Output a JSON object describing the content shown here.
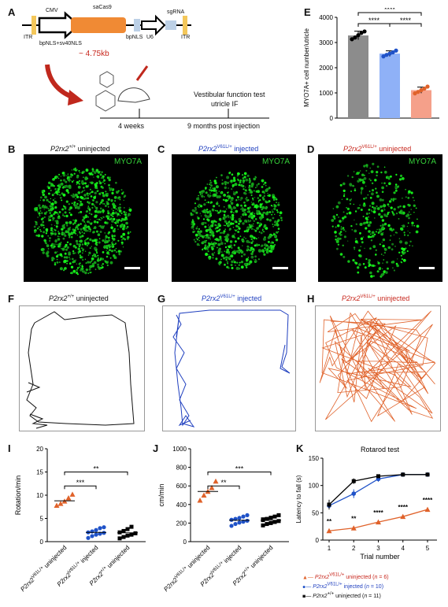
{
  "panels": {
    "A": "A",
    "B": "B",
    "C": "C",
    "D": "D",
    "E": "E",
    "F": "F",
    "G": "G",
    "H": "H",
    "I": "I",
    "J": "J",
    "K": "K"
  },
  "construct": {
    "itr_left": "ITR",
    "cmv": "CMV",
    "sacas9": "saCas9",
    "sgrna": "sgRNA",
    "u6": "U6",
    "itr_right": "ITR",
    "bpnls_sv40": "bpNLS+sv40NLS",
    "bpnls": "bpNLS",
    "size": "~ 4.75kb"
  },
  "timeline": {
    "test_line1": "Vestibular function test",
    "test_line2": "utricle IF",
    "t1": "4 weeks",
    "t2": "9 months post injection"
  },
  "micro_titles": {
    "B": {
      "gene": "P2rx2",
      "sup": "+/+",
      "rest": " uninjected",
      "color": "#000000"
    },
    "C": {
      "gene": "P2rx2",
      "sup": "V61L/+",
      "rest": " injected",
      "color": "#1f3fbf"
    },
    "D": {
      "gene": "P2rx2",
      "sup": "V61L/+",
      "rest": " uninjected",
      "color": "#c8281e"
    }
  },
  "micro_stain": "MYO7A",
  "track_titles": {
    "F": {
      "gene": "P2rx2",
      "sup": "+/+",
      "rest": " uninjected",
      "color": "#000000"
    },
    "G": {
      "gene": "P2rx2",
      "sup": "V61L/+",
      "rest": " injected",
      "color": "#1f3fbf"
    },
    "H": {
      "gene": "P2rx2",
      "sup": "V61L/+",
      "rest": " uninjected",
      "color": "#c8281e"
    }
  },
  "group_labels": {
    "g1": {
      "gene": "P2rx2",
      "sup": "V61L/+",
      "rest": " uninjected"
    },
    "g2": {
      "gene": "P2rx2",
      "sup": "V61L/+",
      "rest": " injected"
    },
    "g3": {
      "gene": "P2rx2",
      "sup": "+/+",
      "rest": " uninjected"
    }
  },
  "colors": {
    "wt": "#000000",
    "injected": "#1f52c8",
    "uninjected": "#e0622a",
    "green": "#36d23a"
  },
  "chart_data": [
    {
      "id": "E",
      "type": "bar",
      "ylabel": "MYO7A+ cell number/utricle",
      "ylabel_sup": "+",
      "ylim": [
        0,
        4000
      ],
      "yticks": [
        0,
        1000,
        2000,
        3000,
        4000
      ],
      "categories": [
        "P2rx2+/+ uninjected",
        "P2rx2V61L/+ injected",
        "P2rx2V61L/+ uninjected"
      ],
      "values": [
        3280,
        2560,
        1110
      ],
      "errors": [
        170,
        110,
        120
      ],
      "points": [
        [
          3130,
          3200,
          3290,
          3380,
          3440
        ],
        [
          2450,
          2510,
          2560,
          2610,
          2680
        ],
        [
          980,
          1040,
          1110,
          1170,
          1250
        ]
      ],
      "bar_colors": [
        "#8c8c8c",
        "#8fb1f7",
        "#f5a08a"
      ],
      "point_colors": [
        "#000000",
        "#1f52c8",
        "#e0622a"
      ],
      "significance": [
        "****",
        "****",
        "****"
      ]
    },
    {
      "id": "I",
      "type": "scatter",
      "ylabel": "Rotation/min",
      "ylim": [
        0,
        20
      ],
      "yticks": [
        0,
        5,
        10,
        15,
        20
      ],
      "groups": [
        {
          "values": [
            7.8,
            8.2,
            8.7,
            9.4,
            10.2
          ],
          "mean": 8.8,
          "marker": "triangle"
        },
        {
          "values": [
            0.8,
            1.2,
            1.5,
            1.7,
            1.9,
            2.0,
            2.2,
            2.5,
            2.9,
            3.1
          ],
          "mean": 2.0,
          "marker": "circle"
        },
        {
          "values": [
            0.7,
            1.0,
            1.3,
            1.5,
            1.8,
            2.0,
            2.3,
            2.7,
            3.2
          ],
          "mean": 1.9,
          "marker": "square"
        }
      ],
      "significance": [
        "***",
        "**"
      ]
    },
    {
      "id": "J",
      "type": "scatter",
      "ylabel": "cm/min",
      "ylim": [
        0,
        1000
      ],
      "yticks": [
        0,
        200,
        400,
        600,
        800,
        1000
      ],
      "groups": [
        {
          "values": [
            445,
            500,
            540,
            580,
            650
          ],
          "mean": 540,
          "marker": "triangle"
        },
        {
          "values": [
            170,
            190,
            205,
            215,
            225,
            235,
            245,
            255,
            270,
            285
          ],
          "mean": 230,
          "marker": "circle"
        },
        {
          "values": [
            175,
            190,
            200,
            212,
            222,
            232,
            245,
            258,
            270,
            285,
            240
          ],
          "mean": 230,
          "marker": "square"
        }
      ],
      "significance": [
        "**",
        "***"
      ]
    },
    {
      "id": "K",
      "type": "line",
      "title": "Rotarod test",
      "xlabel": "Trial number",
      "ylabel": "Latency to fall (s)",
      "x": [
        1,
        2,
        3,
        4,
        5
      ],
      "ylim": [
        0,
        150
      ],
      "yticks": [
        0,
        50,
        100,
        150
      ],
      "series": [
        {
          "name": "P2rx2V61L/+ uninjected (n = 6)",
          "values": [
            17,
            22,
            33,
            43,
            56
          ],
          "err": [
            2,
            3,
            4,
            3,
            3
          ]
        },
        {
          "name": "P2rx2V61L/+ injected (n = 10)",
          "values": [
            63,
            85,
            112,
            120,
            120
          ],
          "err": [
            7,
            8,
            5,
            0,
            0
          ]
        },
        {
          "name": "P2rx2+/+ uninjected (n = 11)",
          "values": [
            65,
            108,
            117,
            120,
            120
          ],
          "err": [
            9,
            5,
            3,
            0,
            0
          ]
        }
      ],
      "significance": [
        "**",
        "**",
        "****",
        "****",
        "****"
      ],
      "legend": [
        {
          "gene": "P2rx2",
          "sup": "V61L/+",
          "rest": " uninjected (",
          "n": "n",
          "tail": " = 6)"
        },
        {
          "gene": "P2rx2",
          "sup": "V61L/+",
          "rest": " injected (",
          "n": "n",
          "tail": " = 10)"
        },
        {
          "gene": "P2rx2",
          "sup": "+/+",
          "rest": " uninjected (",
          "n": "n",
          "tail": " = 11)"
        }
      ]
    }
  ]
}
